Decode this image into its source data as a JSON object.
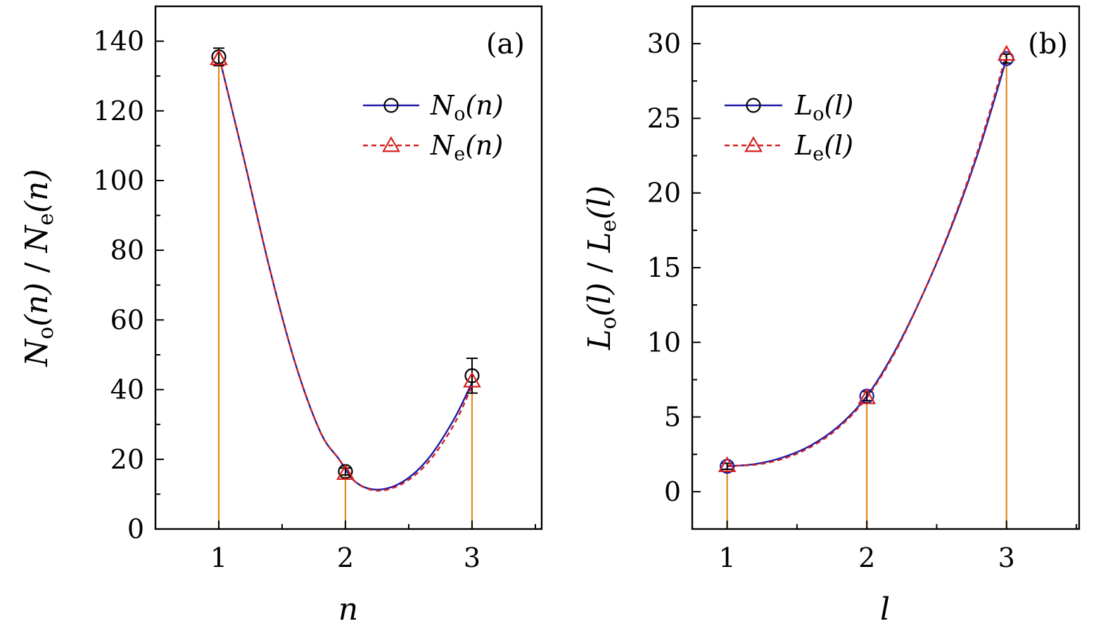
{
  "chart_data": [
    {
      "id": "a",
      "type": "line",
      "panel_label": "(a)",
      "xlabel": "n",
      "ylabel": "N_o(n) / N_e(n)",
      "ylabel_parts": {
        "s1": "N",
        "s2": "o",
        "s3": "(n)",
        "s4": " / ",
        "s5": "N",
        "s6": "e",
        "s7": "(n)"
      },
      "xlim": [
        0.5,
        3.55
      ],
      "ylim": [
        0,
        150
      ],
      "xticks": [
        1,
        2,
        3
      ],
      "xtick_labels": [
        "1",
        "2",
        "3"
      ],
      "yticks": [
        0,
        20,
        40,
        60,
        80,
        100,
        120,
        140
      ],
      "ytick_labels": [
        "0",
        "20",
        "40",
        "60",
        "80",
        "100",
        "120",
        "140"
      ],
      "legend_position": "top-right",
      "series": [
        {
          "name": "N_o(n)",
          "legend": {
            "main": "N",
            "sub": "o",
            "arg": "(n)"
          },
          "marker": "circle",
          "line_style": "solid",
          "color": "#1a1aa6",
          "marker_color": "#000000",
          "x": [
            1,
            2,
            3
          ],
          "y": [
            135.5,
            16.5,
            44
          ],
          "yerr": [
            2.5,
            1,
            5
          ],
          "curve": [
            [
              1.02,
              133
            ],
            [
              1.2,
              106
            ],
            [
              1.4,
              75
            ],
            [
              1.6,
              48
            ],
            [
              1.8,
              28
            ],
            [
              1.95,
              20
            ],
            [
              2.08,
              13.5
            ],
            [
              2.25,
              11.3
            ],
            [
              2.45,
              13.5
            ],
            [
              2.65,
              20
            ],
            [
              2.85,
              31
            ],
            [
              3,
              42
            ]
          ]
        },
        {
          "name": "N_e(n)",
          "legend": {
            "main": "N",
            "sub": "e",
            "arg": "(n)"
          },
          "marker": "triangle",
          "line_style": "dashed",
          "color": "#d62020",
          "marker_color": "#d62020",
          "x": [
            1,
            2,
            3
          ],
          "y": [
            135,
            16,
            42.5
          ],
          "curve": [
            [
              1.02,
              133
            ],
            [
              1.2,
              106
            ],
            [
              1.4,
              75
            ],
            [
              1.6,
              48
            ],
            [
              1.8,
              28
            ],
            [
              1.95,
              20
            ],
            [
              2.08,
              13.5
            ],
            [
              2.25,
              11
            ],
            [
              2.45,
              13
            ],
            [
              2.65,
              19
            ],
            [
              2.85,
              29.5
            ],
            [
              3,
              41
            ]
          ]
        }
      ],
      "stems": {
        "color": "#e08a1e",
        "x": [
          1,
          2,
          3
        ],
        "y": [
          135.5,
          16.5,
          44
        ]
      }
    },
    {
      "id": "b",
      "type": "line",
      "panel_label": "(b)",
      "xlabel": "l",
      "ylabel": "L_o(l) / L_e(l)",
      "ylabel_parts": {
        "s1": "L",
        "s2": "o",
        "s3": "(l)",
        "s4": " / ",
        "s5": "L",
        "s6": "e",
        "s7": "(l)"
      },
      "xlim": [
        0.75,
        3.52
      ],
      "ylim": [
        -2.5,
        32.5
      ],
      "xticks": [
        1,
        2,
        3
      ],
      "xtick_labels": [
        "1",
        "2",
        "3"
      ],
      "yticks": [
        0,
        5,
        10,
        15,
        20,
        25,
        30
      ],
      "ytick_labels": [
        "0",
        "5",
        "10",
        "15",
        "20",
        "25",
        "30"
      ],
      "legend_position": "top-left",
      "series": [
        {
          "name": "L_o(l)",
          "legend": {
            "main": "L",
            "sub": "o",
            "arg": "(l)"
          },
          "marker": "circle",
          "line_style": "solid",
          "color": "#1a1aa6",
          "marker_color": "#1a1aa6",
          "x": [
            1,
            2,
            3
          ],
          "y": [
            1.7,
            6.4,
            29
          ],
          "yerr": [
            0.2,
            0.3,
            0.3
          ],
          "curve": [
            [
              1,
              1.7
            ],
            [
              1.2,
              1.85
            ],
            [
              1.4,
              2.3
            ],
            [
              1.6,
              3.1
            ],
            [
              1.8,
              4.4
            ],
            [
              2,
              6.4
            ],
            [
              2.2,
              9.4
            ],
            [
              2.4,
              13.2
            ],
            [
              2.6,
              17.6
            ],
            [
              2.8,
              22.8
            ],
            [
              3,
              29
            ]
          ]
        },
        {
          "name": "L_e(l)",
          "legend": {
            "main": "L",
            "sub": "e",
            "arg": "(l)"
          },
          "marker": "triangle",
          "line_style": "dashed",
          "color": "#d62020",
          "marker_color": "#d62020",
          "x": [
            1,
            2,
            3
          ],
          "y": [
            1.75,
            6.3,
            29.3
          ],
          "curve": [
            [
              1,
              1.75
            ],
            [
              1.2,
              1.8
            ],
            [
              1.4,
              2.2
            ],
            [
              1.6,
              3.0
            ],
            [
              1.8,
              4.3
            ],
            [
              2,
              6.3
            ],
            [
              2.2,
              9.3
            ],
            [
              2.4,
              13.2
            ],
            [
              2.6,
              17.7
            ],
            [
              2.8,
              23.0
            ],
            [
              3,
              29.3
            ]
          ]
        }
      ],
      "stems": {
        "color": "#e08a1e",
        "x": [
          1,
          2,
          3
        ],
        "y": [
          1.7,
          6.4,
          29
        ]
      }
    }
  ]
}
